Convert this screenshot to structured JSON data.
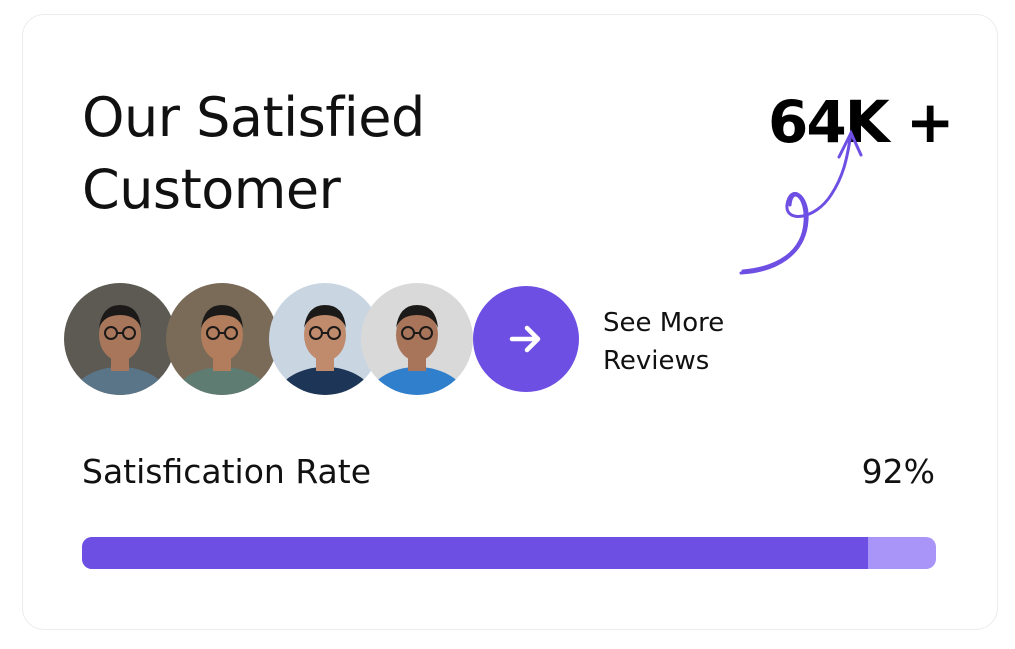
{
  "card": {
    "title_line1": "Our Satisfied",
    "title_line2": "Customer",
    "stat": "64K +",
    "see_more": {
      "line1": "See More",
      "line2": "Reviews",
      "button_icon": "arrow-right-icon"
    },
    "avatars": [
      {
        "shirt": "#5a7488",
        "bg": "#5c5a52",
        "skin": "#a8765a"
      },
      {
        "shirt": "#5f7c72",
        "bg": "#7a6a58",
        "skin": "#b27d5c"
      },
      {
        "shirt": "#1d3556",
        "bg": "#c9d6e2",
        "skin": "#c08a6c"
      },
      {
        "shirt": "#2f7fcc",
        "bg": "#d9d9d9",
        "skin": "#a8755a"
      }
    ],
    "satisfaction": {
      "label": "Satisfication Rate",
      "value_text": "92%",
      "value": 92
    },
    "colors": {
      "accent": "#6e4fe3",
      "accent_light": "#a994f7"
    }
  }
}
